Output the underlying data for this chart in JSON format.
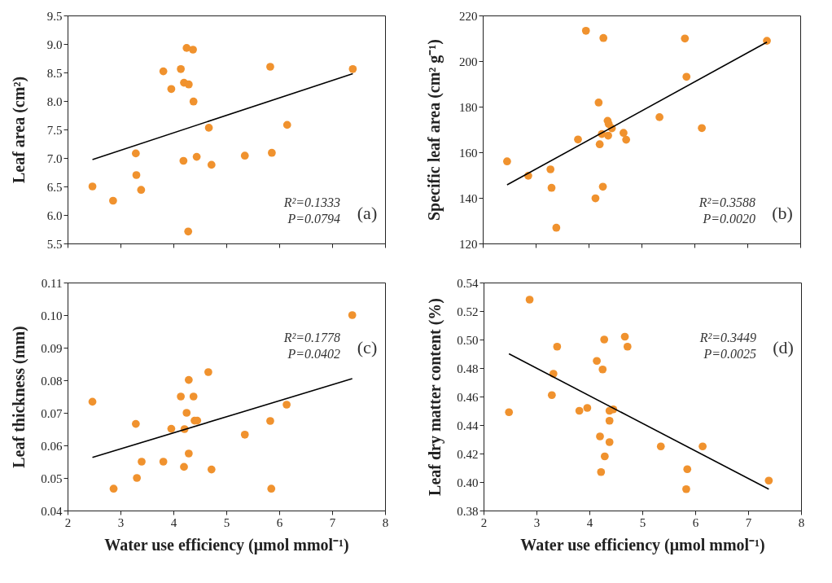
{
  "chart_data": [
    {
      "type": "scatter",
      "ylabel": "Leaf area (cm²)",
      "xlim": [
        2,
        8
      ],
      "xticks": [
        2,
        3,
        4,
        5,
        6,
        7,
        8
      ],
      "ylim": [
        5.5,
        9.5
      ],
      "yticks": [
        {
          "value": 5.5,
          "label": "5.5"
        },
        {
          "value": 6,
          "label": "6.0"
        },
        {
          "value": 6.5,
          "label": "6.5"
        },
        {
          "value": 7,
          "label": "7.0"
        },
        {
          "value": 7.5,
          "label": "7.5"
        },
        {
          "value": 8,
          "label": "8.0"
        },
        {
          "value": 8.5,
          "label": "8.5"
        },
        {
          "value": 9,
          "label": "9.0"
        },
        {
          "value": 9.5,
          "label": "9.5"
        }
      ],
      "tick_labels": "y",
      "grid": false,
      "annotations": [
        "R²=0.1333",
        "P=0.0794",
        "(a)"
      ],
      "series": [
        {
          "marker": "circle",
          "color": "#f0922e",
          "x": [
            2.47,
            2.86,
            3.29,
            3.3,
            3.39,
            3.81,
            3.96,
            4.14,
            4.2,
            4.25,
            4.29,
            4.19,
            4.28,
            4.37,
            4.38,
            4.44,
            4.67,
            4.72,
            5.35,
            5.83,
            5.86,
            6.15,
            7.39
          ],
          "values": [
            6.5,
            6.25,
            7.08,
            6.7,
            6.44,
            8.52,
            8.21,
            8.56,
            8.32,
            8.93,
            8.29,
            6.95,
            5.71,
            8.9,
            7.99,
            7.02,
            7.53,
            6.88,
            7.04,
            8.6,
            7.09,
            7.58,
            8.56
          ]
        },
        {
          "type": "line",
          "color": "#000000",
          "line_style": "solid",
          "x": [
            2.47,
            7.39
          ],
          "values": [
            6.97,
            8.48
          ]
        }
      ]
    },
    {
      "type": "scatter",
      "ylabel": "Specific leaf area (cm² g⁻¹)",
      "xlim": [
        2,
        8
      ],
      "xticks": [
        2,
        3,
        4,
        5,
        6,
        7,
        8
      ],
      "ylim": [
        120,
        220
      ],
      "yticks": [
        120,
        140,
        160,
        180,
        200,
        220
      ],
      "tick_labels": "y",
      "grid": false,
      "annotations": [
        "R²=0.3588",
        "P=0.0020",
        "(b)"
      ],
      "series": [
        {
          "marker": "circle",
          "color": "#f0922e",
          "x": [
            2.46,
            2.86,
            3.28,
            3.3,
            3.39,
            3.8,
            3.95,
            4.13,
            4.19,
            4.21,
            4.25,
            4.27,
            4.28,
            4.36,
            4.38,
            4.37,
            4.44,
            4.66,
            4.71,
            5.34,
            5.82,
            5.85,
            6.14,
            7.37
          ],
          "values": [
            156.0,
            149.7,
            152.5,
            144.4,
            126.9,
            165.6,
            213.3,
            139.8,
            181.8,
            163.5,
            168.0,
            144.9,
            210.1,
            173.8,
            172.4,
            167.3,
            170.5,
            168.5,
            165.5,
            175.4,
            209.9,
            193.1,
            170.6,
            208.9
          ]
        },
        {
          "type": "line",
          "color": "#000000",
          "line_style": "solid",
          "x": [
            2.46,
            7.37
          ],
          "values": [
            145.7,
            208.3
          ]
        }
      ]
    },
    {
      "type": "scatter",
      "xlabel": "Water use efficiency (μmol mmol⁻¹)",
      "ylabel": "Leaf thickness (mm)",
      "xlim": [
        2,
        8
      ],
      "xticks": [
        2,
        3,
        4,
        5,
        6,
        7,
        8
      ],
      "ylim": [
        0.04,
        0.11
      ],
      "yticks": [
        {
          "value": 0.04,
          "label": "0.04"
        },
        {
          "value": 0.05,
          "label": "0.05"
        },
        {
          "value": 0.06,
          "label": "0.06"
        },
        {
          "value": 0.07,
          "label": "0.07"
        },
        {
          "value": 0.08,
          "label": "0.08"
        },
        {
          "value": 0.09,
          "label": "0.09"
        },
        {
          "value": 0.1,
          "label": "0.10"
        },
        {
          "value": 0.11,
          "label": "0.11"
        }
      ],
      "grid": false,
      "annotations": [
        "R²=0.1778",
        "P=0.0402",
        "(c)"
      ],
      "series": [
        {
          "marker": "circle",
          "color": "#f0922e",
          "x": [
            2.47,
            2.87,
            3.29,
            3.31,
            3.4,
            3.81,
            3.96,
            4.14,
            4.2,
            4.21,
            4.25,
            4.29,
            4.29,
            4.38,
            4.4,
            4.45,
            4.66,
            4.72,
            5.35,
            5.83,
            5.85,
            6.14,
            7.38
          ],
          "values": [
            0.0734,
            0.0467,
            0.0666,
            0.05,
            0.055,
            0.055,
            0.0651,
            0.075,
            0.0534,
            0.065,
            0.07,
            0.0575,
            0.0801,
            0.075,
            0.0676,
            0.0676,
            0.0825,
            0.0526,
            0.0633,
            0.0675,
            0.0467,
            0.0725,
            0.1
          ]
        },
        {
          "type": "line",
          "color": "#000000",
          "line_style": "solid",
          "x": [
            2.47,
            7.38
          ],
          "values": [
            0.0563,
            0.0805
          ]
        }
      ]
    },
    {
      "type": "scatter",
      "xlabel": "Water use efficiency (μmol mmol⁻¹)",
      "ylabel": "Leaf dry matter content (%)",
      "xlim": [
        2,
        8
      ],
      "xticks": [
        2,
        3,
        4,
        5,
        6,
        7,
        8
      ],
      "ylim": [
        0.38,
        0.54
      ],
      "yticks": [
        {
          "value": 0.38,
          "label": "0.38"
        },
        {
          "value": 0.4,
          "label": "0.40"
        },
        {
          "value": 0.42,
          "label": "0.42"
        },
        {
          "value": 0.44,
          "label": "0.44"
        },
        {
          "value": 0.46,
          "label": "0.46"
        },
        {
          "value": 0.48,
          "label": "0.48"
        },
        {
          "value": 0.5,
          "label": "0.50"
        },
        {
          "value": 0.52,
          "label": "0.52"
        },
        {
          "value": 0.54,
          "label": "0.54"
        }
      ],
      "grid": false,
      "annotations": [
        "R²=0.3449",
        "P=0.0025",
        "(d)"
      ],
      "series": [
        {
          "marker": "circle",
          "color": "#f0922e",
          "x": [
            2.48,
            2.87,
            3.29,
            3.32,
            3.39,
            3.81,
            3.96,
            4.14,
            4.2,
            4.22,
            4.25,
            4.28,
            4.29,
            4.38,
            4.38,
            4.38,
            4.45,
            4.67,
            4.72,
            5.35,
            5.83,
            5.85,
            6.14,
            7.39
          ],
          "values": [
            0.449,
            0.528,
            0.461,
            0.476,
            0.495,
            0.45,
            0.452,
            0.485,
            0.432,
            0.407,
            0.479,
            0.5,
            0.418,
            0.45,
            0.443,
            0.428,
            0.451,
            0.502,
            0.495,
            0.425,
            0.395,
            0.409,
            0.425,
            0.401
          ]
        },
        {
          "type": "line",
          "color": "#000000",
          "line_style": "solid",
          "x": [
            2.48,
            7.39
          ],
          "values": [
            0.49,
            0.395
          ]
        }
      ]
    }
  ]
}
